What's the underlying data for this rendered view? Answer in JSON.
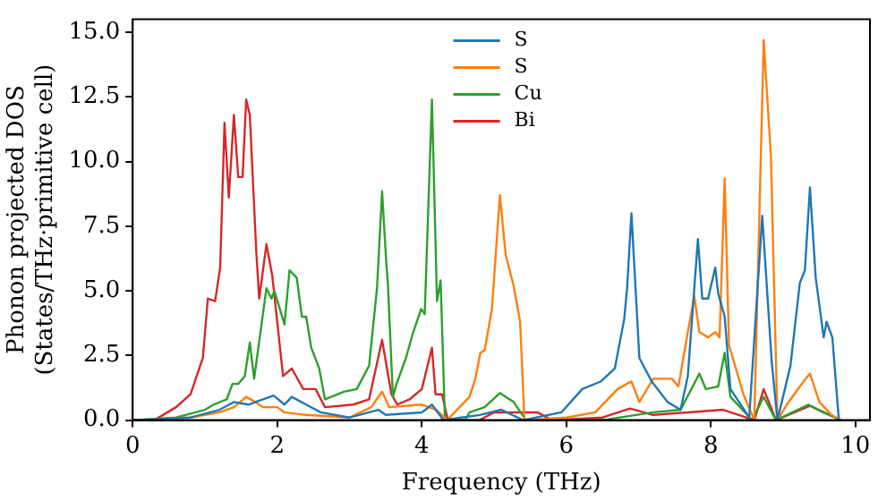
{
  "chart_data": {
    "type": "line",
    "xlabel": "Frequency (THz)",
    "ylabel": "Phonon projected DOS\n(States/THz·primitive cell)",
    "xlim": [
      0,
      10.2
    ],
    "ylim": [
      0,
      15.5
    ],
    "xticks": [
      0,
      2,
      4,
      6,
      8,
      10
    ],
    "yticks": [
      {
        "value": 0,
        "label": "0.0"
      },
      {
        "value": 2.5,
        "label": "2.5"
      },
      {
        "value": 5,
        "label": "5.0"
      },
      {
        "value": 7.5,
        "label": "7.5"
      },
      {
        "value": 10,
        "label": "10.0"
      },
      {
        "value": 12.5,
        "label": "12.5"
      },
      {
        "value": 15,
        "label": "15.0"
      }
    ],
    "legend": "top",
    "grid": false,
    "marker": "none",
    "line_style": "solid",
    "series": [
      {
        "name": "S",
        "color": "#1f77b4",
        "x": [
          0,
          0.8,
          1.2,
          1.4,
          1.6,
          1.8,
          1.95,
          2.1,
          2.2,
          2.4,
          2.6,
          3.0,
          3.4,
          3.5,
          4.0,
          4.14,
          4.3,
          4.8,
          5.1,
          5.4,
          5.93,
          6.22,
          6.48,
          6.67,
          6.8,
          6.84,
          6.9,
          7.01,
          7.18,
          7.4,
          7.58,
          7.68,
          7.82,
          7.88,
          7.96,
          8.06,
          8.1,
          8.19,
          8.27,
          8.53,
          8.71,
          8.84,
          8.92,
          9.1,
          9.23,
          9.3,
          9.37,
          9.45,
          9.56,
          9.6,
          9.68,
          9.77
        ],
        "values": [
          0,
          0.1,
          0.4,
          0.7,
          0.6,
          0.8,
          0.95,
          0.6,
          0.9,
          0.6,
          0.3,
          0.1,
          0.4,
          0.2,
          0.3,
          0.6,
          0,
          0.2,
          0.4,
          0,
          0.3,
          1.2,
          1.5,
          2.0,
          3.9,
          5.1,
          8.0,
          2.4,
          1.5,
          0.7,
          0.4,
          1.7,
          7.0,
          4.7,
          4.7,
          5.9,
          4.9,
          4.0,
          1.2,
          0.1,
          7.9,
          2.3,
          0,
          2.1,
          5.3,
          5.8,
          9.0,
          5.5,
          3.2,
          3.8,
          3.2,
          0
        ]
      },
      {
        "name": "S",
        "color": "#ff7f0e",
        "x": [
          0,
          0.8,
          1.2,
          1.4,
          1.57,
          1.7,
          1.8,
          2.0,
          2.1,
          2.4,
          3.0,
          3.3,
          3.45,
          3.55,
          4.0,
          4.2,
          4.35,
          4.66,
          4.74,
          4.81,
          4.87,
          4.97,
          5.08,
          5.16,
          5.27,
          5.36,
          5.42,
          6.0,
          6.4,
          6.71,
          6.9,
          7.01,
          7.2,
          7.46,
          7.55,
          7.68,
          7.77,
          7.84,
          7.96,
          8.06,
          8.12,
          8.19,
          8.25,
          8.45,
          8.6,
          8.73,
          8.83,
          8.92,
          9.05,
          9.23,
          9.37,
          9.5,
          9.67,
          9.8
        ],
        "values": [
          0,
          0.1,
          0.3,
          0.5,
          0.9,
          0.7,
          0.5,
          0.5,
          0.3,
          0.2,
          0.1,
          0.5,
          1.1,
          0.5,
          0.6,
          0.4,
          0,
          0.9,
          1.6,
          2.6,
          2.7,
          4.3,
          8.7,
          6.4,
          5.2,
          3.8,
          0,
          0.1,
          0.3,
          1.2,
          1.5,
          0.7,
          1.6,
          1.6,
          1.3,
          3.4,
          4.8,
          3.4,
          3.2,
          3.4,
          3.2,
          9.35,
          2.9,
          1.0,
          0,
          14.7,
          10.2,
          0,
          0.6,
          1.3,
          1.8,
          0.7,
          0.2,
          0
        ]
      },
      {
        "name": "Cu",
        "color": "#2ca02c",
        "x": [
          0,
          0.6,
          1.0,
          1.12,
          1.3,
          1.38,
          1.46,
          1.55,
          1.62,
          1.68,
          1.85,
          1.92,
          1.96,
          2.1,
          2.17,
          2.27,
          2.34,
          2.4,
          2.47,
          2.58,
          2.66,
          2.92,
          3.1,
          3.27,
          3.38,
          3.45,
          3.51,
          3.53,
          3.6,
          3.65,
          3.78,
          3.87,
          3.99,
          4.04,
          4.14,
          4.21,
          4.26,
          4.32,
          4.6,
          4.66,
          4.87,
          5.08,
          5.27,
          5.44,
          6.5,
          7.2,
          7.58,
          7.84,
          7.93,
          8.1,
          8.19,
          8.27,
          8.57,
          8.73,
          8.9,
          9.35,
          9.55,
          9.8
        ],
        "values": [
          0,
          0.1,
          0.4,
          0.6,
          0.8,
          1.4,
          1.4,
          1.7,
          3.0,
          1.6,
          5.1,
          4.7,
          5.0,
          3.7,
          5.8,
          5.5,
          4.0,
          4.0,
          2.8,
          2.0,
          0.8,
          1.1,
          1.2,
          2.1,
          5.1,
          8.85,
          6.0,
          5.3,
          0.9,
          1.4,
          2.4,
          3.3,
          4.3,
          4.1,
          12.4,
          4.6,
          5.4,
          0,
          0,
          0.3,
          0.5,
          1.05,
          0.7,
          0,
          0,
          0.3,
          0.4,
          1.8,
          1.2,
          1.3,
          2.6,
          0.9,
          0,
          0.9,
          0,
          0.6,
          0.3,
          0
        ]
      },
      {
        "name": "Bi",
        "color": "#d62728",
        "x": [
          0,
          0.3,
          0.6,
          0.8,
          0.97,
          1.04,
          1.14,
          1.21,
          1.27,
          1.33,
          1.4,
          1.46,
          1.52,
          1.57,
          1.62,
          1.71,
          1.75,
          1.85,
          1.93,
          2.08,
          2.2,
          2.26,
          2.36,
          2.53,
          2.66,
          3.05,
          3.27,
          3.45,
          3.58,
          3.66,
          3.83,
          4.0,
          4.14,
          4.19,
          4.28,
          4.36,
          4.8,
          5.0,
          5.6,
          5.8,
          6.5,
          6.88,
          7.2,
          8.17,
          8.6,
          8.73,
          8.9,
          9.37,
          9.8
        ],
        "values": [
          0,
          0,
          0.5,
          1.0,
          2.4,
          4.7,
          4.6,
          5.9,
          11.5,
          8.6,
          11.8,
          9.4,
          9.4,
          12.4,
          11.8,
          6.5,
          4.7,
          6.8,
          5.6,
          1.7,
          2.0,
          1.7,
          1.2,
          1.2,
          0.5,
          0.6,
          0.8,
          3.1,
          1.0,
          0.6,
          0.8,
          1.2,
          2.8,
          1.0,
          1.0,
          0,
          0,
          0.3,
          0.3,
          0,
          0.1,
          0.45,
          0.2,
          0.4,
          0,
          1.2,
          0,
          0.55,
          0
        ]
      }
    ]
  }
}
